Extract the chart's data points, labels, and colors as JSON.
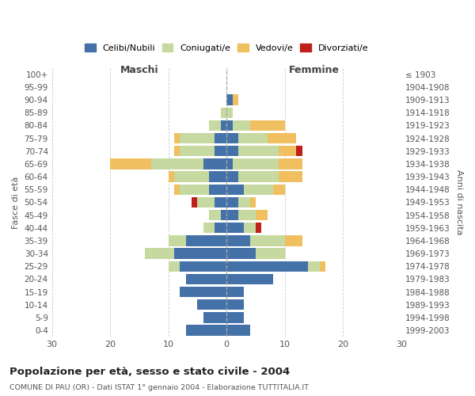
{
  "age_groups": [
    "0-4",
    "5-9",
    "10-14",
    "15-19",
    "20-24",
    "25-29",
    "30-34",
    "35-39",
    "40-44",
    "45-49",
    "50-54",
    "55-59",
    "60-64",
    "65-69",
    "70-74",
    "75-79",
    "80-84",
    "85-89",
    "90-94",
    "95-99",
    "100+"
  ],
  "birth_years": [
    "1999-2003",
    "1994-1998",
    "1989-1993",
    "1984-1988",
    "1979-1983",
    "1974-1978",
    "1969-1973",
    "1964-1968",
    "1959-1963",
    "1954-1958",
    "1949-1953",
    "1944-1948",
    "1939-1943",
    "1934-1938",
    "1929-1933",
    "1924-1928",
    "1919-1923",
    "1914-1918",
    "1909-1913",
    "1904-1908",
    "≤ 1903"
  ],
  "colors": {
    "celibi": "#4472a8",
    "coniugati": "#c5d9a0",
    "vedovi": "#f0c060",
    "divorziati": "#c0201a"
  },
  "maschi": {
    "celibi": [
      7,
      4,
      5,
      8,
      7,
      8,
      9,
      7,
      2,
      1,
      2,
      3,
      3,
      4,
      2,
      2,
      1,
      0,
      0,
      0,
      0
    ],
    "coniugati": [
      0,
      0,
      0,
      0,
      0,
      2,
      5,
      3,
      2,
      2,
      3,
      5,
      6,
      9,
      6,
      6,
      2,
      1,
      0,
      0,
      0
    ],
    "vedovi": [
      0,
      0,
      0,
      0,
      0,
      0,
      0,
      0,
      0,
      0,
      0,
      1,
      1,
      7,
      1,
      1,
      0,
      0,
      0,
      0,
      0
    ],
    "divorziati": [
      0,
      0,
      0,
      0,
      0,
      0,
      0,
      0,
      0,
      0,
      1,
      0,
      0,
      0,
      0,
      0,
      0,
      0,
      0,
      0,
      0
    ]
  },
  "femmine": {
    "celibi": [
      4,
      3,
      3,
      3,
      8,
      14,
      5,
      4,
      3,
      2,
      2,
      3,
      2,
      1,
      2,
      2,
      1,
      0,
      1,
      0,
      0
    ],
    "coniugati": [
      0,
      0,
      0,
      0,
      0,
      2,
      5,
      6,
      2,
      3,
      2,
      5,
      7,
      8,
      7,
      5,
      3,
      1,
      0,
      0,
      0
    ],
    "vedovi": [
      0,
      0,
      0,
      0,
      0,
      1,
      0,
      3,
      0,
      2,
      1,
      2,
      4,
      4,
      3,
      5,
      6,
      0,
      1,
      0,
      0
    ],
    "divorziati": [
      0,
      0,
      0,
      0,
      0,
      0,
      0,
      0,
      1,
      0,
      0,
      0,
      0,
      0,
      1,
      0,
      0,
      0,
      0,
      0,
      0
    ]
  },
  "title": "Popolazione per età, sesso e stato civile - 2004",
  "subtitle": "COMUNE DI PAU (OR) - Dati ISTAT 1° gennaio 2004 - Elaborazione TUTTITALIA.IT",
  "xlabel_left": "Maschi",
  "xlabel_right": "Femmine",
  "ylabel_left": "Fasce di età",
  "ylabel_right": "Anni di nascita",
  "xlim": 30,
  "legend_labels": [
    "Celibi/Nubili",
    "Coniugati/e",
    "Vedovi/e",
    "Divorziati/e"
  ],
  "bg_color": "#ffffff",
  "grid_color": "#cccccc"
}
